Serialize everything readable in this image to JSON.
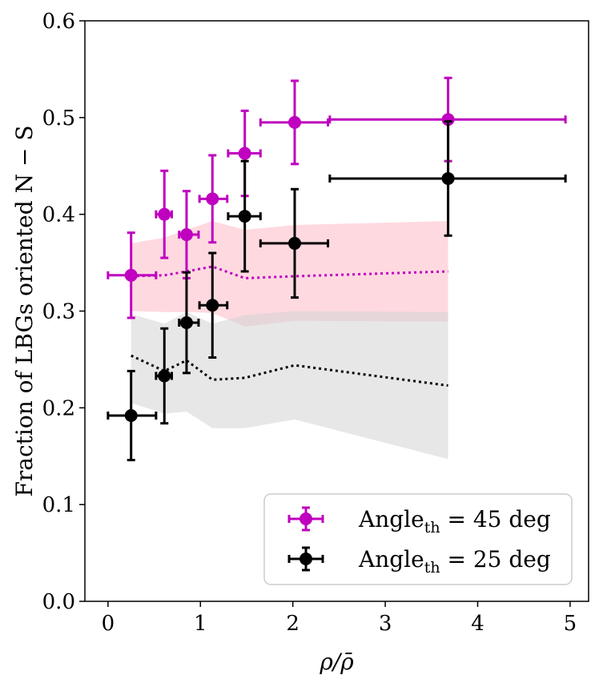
{
  "chart_data": {
    "type": "scatter",
    "xlabel": "ρ/ρ̄",
    "ylabel": "Fraction of LBGs oriented N − S",
    "xlim": [
      -0.25,
      5.2
    ],
    "ylim": [
      0.0,
      0.6
    ],
    "xticks": [
      0,
      1,
      2,
      3,
      4,
      5
    ],
    "yticks": [
      0.0,
      0.1,
      0.2,
      0.3,
      0.4,
      0.5,
      0.6
    ],
    "xtick_labels": [
      "0",
      "1",
      "2",
      "3",
      "4",
      "5"
    ],
    "ytick_labels": [
      "0.0",
      "0.1",
      "0.2",
      "0.3",
      "0.4",
      "0.5",
      "0.6"
    ],
    "legend_position": "lower-right",
    "series": [
      {
        "name": "Angle_th = 45 deg",
        "legend_main": "Angle",
        "legend_sub": "th",
        "legend_rest": " = 45 deg",
        "color": "#bf00bf",
        "x": [
          0.25,
          0.61,
          0.85,
          1.13,
          1.48,
          2.02,
          3.68
        ],
        "y": [
          0.337,
          0.4,
          0.379,
          0.416,
          0.463,
          0.495,
          0.498
        ],
        "x_err_low": [
          0.25,
          0.09,
          0.08,
          0.14,
          0.18,
          0.37,
          1.28
        ],
        "x_err_high": [
          0.27,
          0.08,
          0.13,
          0.16,
          0.17,
          0.36,
          1.27
        ],
        "y_err": [
          0.044,
          0.045,
          0.045,
          0.045,
          0.044,
          0.043,
          0.043
        ]
      },
      {
        "name": "Angle_th = 25 deg",
        "legend_main": "Angle",
        "legend_sub": "th",
        "legend_rest": " = 25 deg",
        "color": "#000000",
        "x": [
          0.25,
          0.61,
          0.85,
          1.13,
          1.48,
          2.02,
          3.68
        ],
        "y": [
          0.192,
          0.233,
          0.288,
          0.306,
          0.398,
          0.37,
          0.437
        ],
        "x_err_low": [
          0.25,
          0.09,
          0.08,
          0.14,
          0.18,
          0.37,
          1.28
        ],
        "x_err_high": [
          0.27,
          0.08,
          0.13,
          0.16,
          0.17,
          0.36,
          1.27
        ],
        "y_err": [
          0.046,
          0.049,
          0.052,
          0.054,
          0.057,
          0.056,
          0.059
        ]
      }
    ],
    "bands": [
      {
        "color": "#ffc0cb",
        "opacity": 0.6,
        "line_color": "#bf00bf",
        "x": [
          0.25,
          0.61,
          0.85,
          1.13,
          1.48,
          2.02,
          3.68
        ],
        "mid": [
          0.336,
          0.337,
          0.341,
          0.346,
          0.334,
          0.336,
          0.341
        ],
        "low": [
          0.3,
          0.299,
          0.299,
          0.298,
          0.284,
          0.29,
          0.289
        ],
        "high": [
          0.37,
          0.376,
          0.384,
          0.393,
          0.384,
          0.389,
          0.393
        ]
      },
      {
        "color": "#d3d3d3",
        "opacity": 0.55,
        "line_color": "#000000",
        "x": [
          0.25,
          0.61,
          0.85,
          1.13,
          1.48,
          2.02,
          3.68
        ],
        "mid": [
          0.254,
          0.238,
          0.249,
          0.229,
          0.231,
          0.244,
          0.223
        ],
        "low": [
          0.205,
          0.194,
          0.196,
          0.179,
          0.179,
          0.188,
          0.147
        ],
        "high": [
          0.297,
          0.287,
          0.299,
          0.287,
          0.296,
          0.3,
          0.299
        ]
      }
    ]
  }
}
